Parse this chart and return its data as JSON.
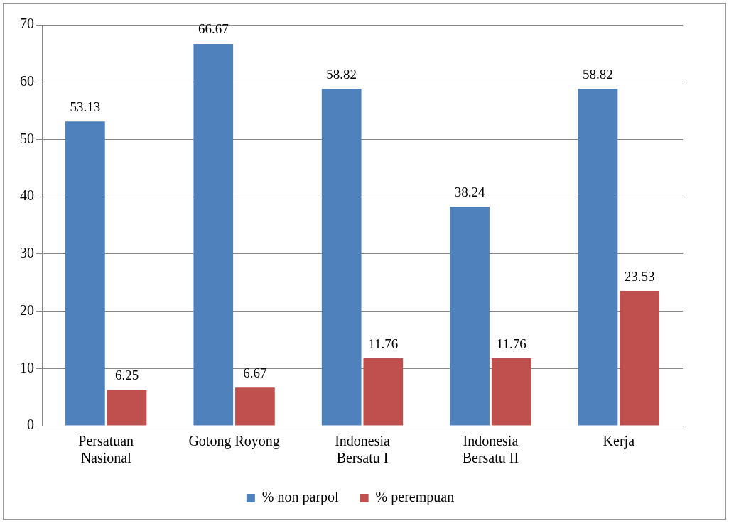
{
  "chart_data": {
    "type": "bar",
    "categories": [
      "Persatuan Nasional",
      "Gotong Royong",
      "Indonesia Bersatu I",
      "Indonesia Bersatu II",
      "Kerja"
    ],
    "series": [
      {
        "name": "% non parpol",
        "color": "#4f81bd",
        "values": [
          53.13,
          66.67,
          58.82,
          38.24,
          58.82
        ]
      },
      {
        "name": "% perempuan",
        "color": "#c0504d",
        "values": [
          6.25,
          6.67,
          11.76,
          11.76,
          23.53
        ]
      }
    ],
    "ylim": [
      0,
      70
    ],
    "yticks": [
      0,
      10,
      20,
      30,
      40,
      50,
      60,
      70
    ],
    "grid": "y",
    "legend": "bottom",
    "data_labels": true
  }
}
